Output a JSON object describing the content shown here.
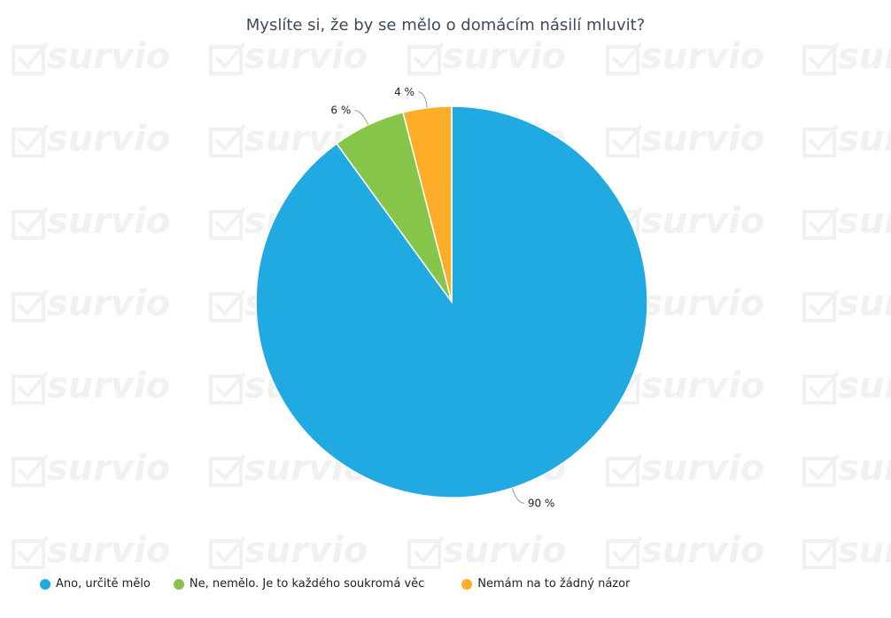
{
  "watermark_text": "survio",
  "chart_data": {
    "type": "pie",
    "title": "Myslíte si, že by se mělo o domácím násilí mluvit?",
    "categories": [
      "Ano, určitě mělo",
      "Ne, nemělo. Je to každého soukromá věc",
      "Nemám na to žádný názor"
    ],
    "values": [
      90,
      6,
      4
    ],
    "value_labels": [
      "90 %",
      "6 %",
      "4 %"
    ],
    "colors": [
      "#21a9e1",
      "#86c44a",
      "#fdad27"
    ],
    "legend_position": "bottom-left"
  }
}
